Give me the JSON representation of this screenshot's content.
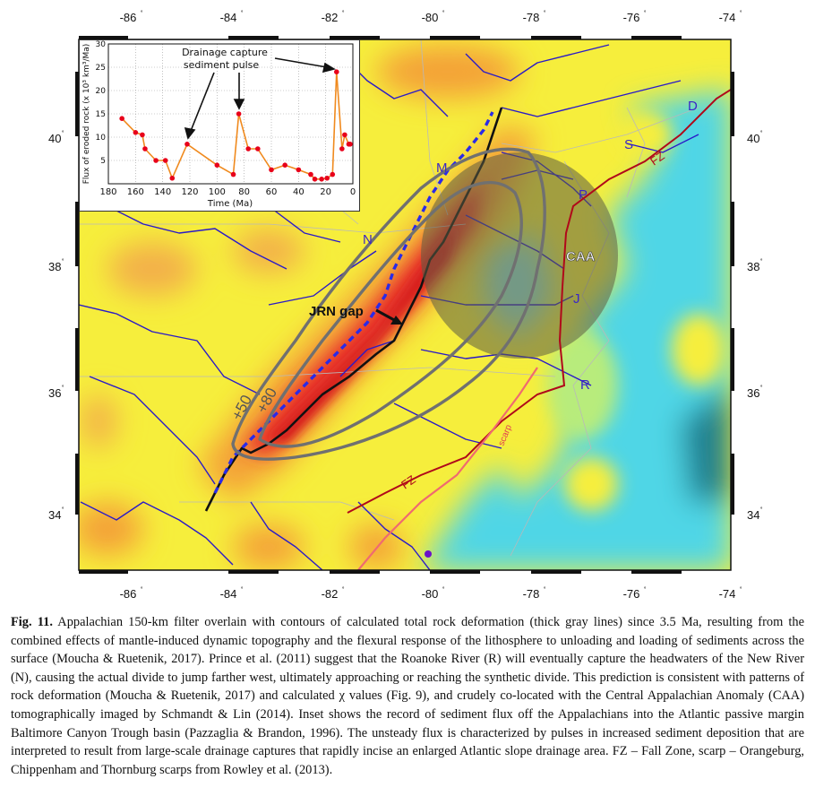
{
  "map": {
    "top_ticks": [
      "-86",
      "-84",
      "-82",
      "-80",
      "-78",
      "-76",
      "-74"
    ],
    "bottom_ticks": [
      "-86",
      "-84",
      "-82",
      "-80",
      "-78",
      "-76",
      "-74"
    ],
    "left_ticks": [
      "40",
      "38",
      "36",
      "34"
    ],
    "right_ticks": [
      "40",
      "38",
      "36",
      "34"
    ],
    "degree_symbol": "˚",
    "labels": {
      "jrn_gap": "JRN gap",
      "caa": "CAA",
      "contour_50": "+50",
      "contour_80": "+80",
      "fz_north": "FZ",
      "fz_south": "FZ",
      "scarp": "scarp",
      "river_d": "D",
      "river_s": "S",
      "river_m": "M",
      "river_p": "P",
      "river_n": "N",
      "river_j": "J",
      "river_r": "R"
    },
    "colors": {
      "ocean_cyan": "#4fd6e6",
      "yellow": "#f7f13a",
      "orange": "#f4a238",
      "red": "#e8302a",
      "contour": "#707070",
      "rivers": "#2a1ac8",
      "fall_zone": "#b0081a",
      "scarp": "#f06a70",
      "caa_shade": "#5c5c44"
    }
  },
  "inset": {
    "ylabel": "Flux of eroded rock (x 10³ km³/Ma)",
    "xlabel": "Time (Ma)",
    "annotation_line1": "Drainage capture",
    "annotation_line2": "sediment pulse",
    "xticks": [
      "180",
      "160",
      "140",
      "120",
      "100",
      "80",
      "60",
      "40",
      "20",
      "0"
    ],
    "yticks": [
      "5",
      "10",
      "15",
      "20",
      "25",
      "30"
    ]
  },
  "chart_data": {
    "type": "line",
    "xlabel": "Time (Ma)",
    "ylabel": "Flux of eroded rock (x 10³ km³/Ma)",
    "xlim": [
      180,
      0
    ],
    "ylim": [
      0,
      30
    ],
    "grid": true,
    "color": "#f08a1e",
    "marker_color": "#e8001a",
    "series": [
      {
        "x": [
          170,
          160,
          155,
          153,
          145,
          138,
          133,
          122,
          100,
          88,
          84,
          77,
          70,
          60,
          50,
          40,
          31,
          28,
          23,
          19,
          15,
          12,
          8,
          6,
          3,
          2
        ],
        "y": [
          14,
          11,
          10.5,
          7.5,
          5,
          5,
          1.2,
          8.5,
          4,
          2,
          15,
          7.5,
          7.5,
          3,
          4,
          3,
          2,
          1,
          1,
          1.2,
          2,
          24,
          7.5,
          10.5,
          8.5,
          8.5
        ]
      }
    ]
  },
  "caption": {
    "fig_label": "Fig. 11.",
    "text": "Appalachian 150-km filter overlain with contours of calculated total rock deformation (thick gray lines) since 3.5 Ma, resulting from the combined effects of mantle-induced dynamic topography and the flexural response of the lithosphere to unloading and loading of sediments across the surface (Moucha & Ruetenik, 2017). Prince et al. (2011) suggest that the Roanoke River (R) will eventually capture the headwaters of the New River (N), causing the actual divide to jump farther west, ultimately approaching or reaching the synthetic divide. This prediction is consistent with patterns of rock deformation (Moucha & Ruetenik, 2017) and calculated χ values (Fig. 9), and crudely co-located with the Central Appalachian Anomaly (CAA) tomographically imaged by Schmandt & Lin (2014). Inset shows the record of sediment flux off the Appalachians into the Atlantic passive margin Baltimore Canyon Trough basin (Pazzaglia & Brandon, 1996). The unsteady flux is characterized by pulses in increased sediment deposition that are interpreted to result from large-scale drainage captures that rapidly incise an enlarged Atlantic slope drainage area. FZ – Fall Zone, scarp – Orangeburg, Chippenham and Thornburg scarps from Rowley et al. (2013)."
  }
}
